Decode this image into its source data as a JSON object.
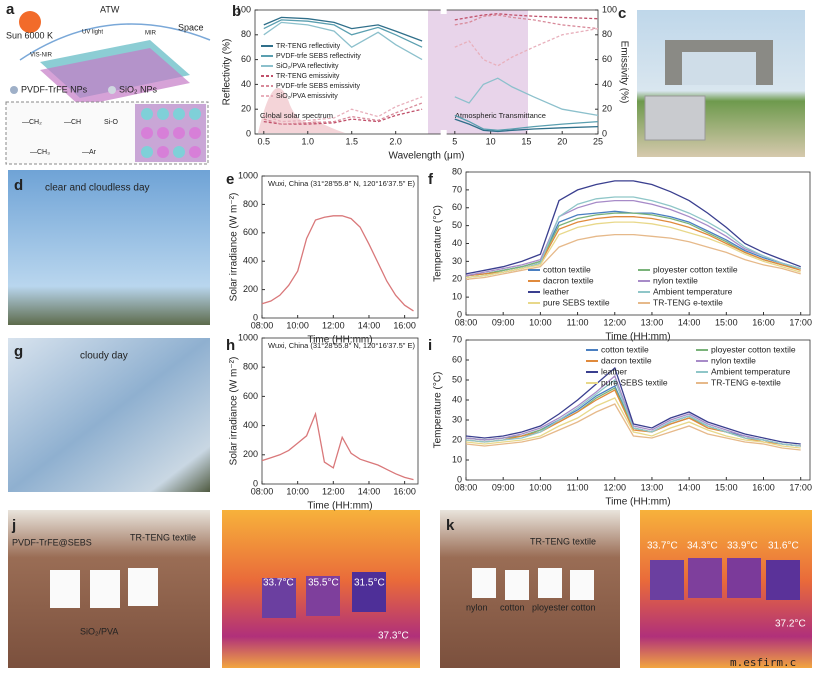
{
  "chart_data": [
    {
      "type": "line",
      "x": [
        0.5,
        0.7,
        1.0,
        1.3,
        1.5,
        1.8,
        2.0,
        2.3,
        5,
        7,
        9,
        11,
        13,
        16,
        20,
        25
      ],
      "xlim": [
        0.4,
        25
      ],
      "xbreak": [
        2.5,
        4
      ],
      "xticks": [
        0.5,
        {
          "value": 1.0,
          "label": "1.0"
        },
        1.5,
        {
          "value": 2.0,
          "label": "2.0"
        },
        5,
        10,
        15,
        20,
        25
      ],
      "xlabel": "Wavelength (μm)",
      "ylabel": "Reflectivity (%)",
      "y2label": "Emissivity (%)",
      "ylim": [
        0,
        100
      ],
      "yticks": [
        0,
        20,
        40,
        60,
        80,
        100
      ],
      "y2lim": [
        0,
        100
      ],
      "y2ticks": [
        0,
        20,
        40,
        60,
        80,
        100
      ],
      "grid": false,
      "legend": "center left",
      "annotations": [
        "Global solar spectrum",
        "Atmospheric Transmittance"
      ],
      "series": [
        {
          "name": "TR-TENG reflectivity",
          "color": "#2f6f8a",
          "values": [
            88,
            94,
            93,
            90,
            85,
            88,
            83,
            75,
            12,
            8,
            3,
            2,
            3,
            4,
            5,
            6
          ]
        },
        {
          "name": "PVDF-trfe SEBS reflectivity",
          "color": "#5a9fb0",
          "values": [
            85,
            92,
            91,
            88,
            80,
            86,
            80,
            70,
            15,
            10,
            4,
            3,
            4,
            6,
            8,
            10
          ]
        },
        {
          "name": "SiO₂/PVA reflectivity",
          "color": "#8cc0cc",
          "values": [
            80,
            90,
            88,
            83,
            70,
            82,
            72,
            60,
            30,
            25,
            40,
            45,
            38,
            30,
            20,
            15
          ]
        },
        {
          "name": "TR-TENG emissivity",
          "color": "#c0506a",
          "axis": "y2",
          "values": [
            10,
            8,
            8,
            9,
            12,
            10,
            15,
            20,
            92,
            94,
            96,
            97,
            96,
            95,
            94,
            93
          ]
        },
        {
          "name": "PVDF-trfe SEBS emissivity",
          "color": "#d88a9a",
          "axis": "y2",
          "values": [
            12,
            8,
            9,
            10,
            14,
            11,
            17,
            25,
            88,
            90,
            95,
            96,
            94,
            92,
            88,
            85
          ]
        },
        {
          "name": "SiO₂/PVA emissivity",
          "color": "#e8b0bc",
          "axis": "y2",
          "values": [
            15,
            10,
            11,
            13,
            20,
            14,
            22,
            30,
            70,
            75,
            60,
            55,
            62,
            70,
            80,
            85
          ]
        }
      ]
    },
    {
      "type": "line",
      "title": "Wuxi, China (31°28'55.8\" N, 120°16'37.5\" E)",
      "x": [
        "08:00",
        null,
        null,
        null,
        "10:00",
        null,
        null,
        null,
        "12:00",
        null,
        null,
        null,
        "14:00",
        null,
        null,
        null,
        "16:00",
        null
      ],
      "xlabel": "Time (HH:mm)",
      "ylabel": "Solar irradiance (W m⁻²)",
      "ylim": [
        0,
        1000
      ],
      "yticks": [
        0,
        200,
        400,
        600,
        800,
        1000
      ],
      "grid": false,
      "series": [
        {
          "name": "Solar irradiance",
          "color": "#d9787a",
          "values": [
            100,
            120,
            160,
            230,
            330,
            560,
            690,
            710,
            720,
            720,
            700,
            640,
            520,
            390,
            260,
            160,
            90,
            50
          ]
        }
      ]
    },
    {
      "type": "line",
      "x": [
        "08:00",
        null,
        "09:00",
        null,
        "10:00",
        null,
        "11:00",
        null,
        "12:00",
        null,
        "13:00",
        null,
        "14:00",
        null,
        "15:00",
        null,
        "16:00",
        null,
        "17:00"
      ],
      "xlabel": "Time (HH:mm)",
      "ylabel": "Temperature (°C)",
      "ylim": [
        0,
        80
      ],
      "yticks": [
        0,
        10,
        20,
        30,
        40,
        50,
        60,
        70,
        80
      ],
      "grid": false,
      "legend": "lower center",
      "series": [
        {
          "name": "cotton textile",
          "color": "#4a7fc1",
          "values": [
            22,
            23,
            25,
            27,
            30,
            52,
            56,
            57,
            58,
            57,
            57,
            55,
            52,
            47,
            42,
            36,
            32,
            29,
            26
          ]
        },
        {
          "name": "ployester cotton textile",
          "color": "#7ab37a",
          "values": [
            22,
            23,
            25,
            27,
            30,
            50,
            54,
            56,
            57,
            57,
            56,
            54,
            51,
            46,
            41,
            35,
            31,
            28,
            26
          ]
        },
        {
          "name": "dacron textile",
          "color": "#e08a3c",
          "values": [
            22,
            23,
            24,
            26,
            29,
            48,
            52,
            54,
            55,
            55,
            54,
            52,
            49,
            45,
            40,
            35,
            31,
            28,
            25
          ]
        },
        {
          "name": "nylon textile",
          "color": "#a78bc8",
          "values": [
            22,
            24,
            26,
            28,
            31,
            55,
            60,
            63,
            64,
            64,
            62,
            59,
            55,
            50,
            44,
            37,
            33,
            29,
            26
          ]
        },
        {
          "name": "leather",
          "color": "#3a3f8f",
          "values": [
            23,
            25,
            27,
            30,
            34,
            64,
            70,
            73,
            75,
            75,
            73,
            69,
            64,
            57,
            49,
            40,
            35,
            31,
            27
          ]
        },
        {
          "name": "Ambient temperature",
          "color": "#8fc6c8",
          "values": [
            21,
            22,
            24,
            26,
            29,
            55,
            62,
            65,
            66,
            66,
            64,
            61,
            57,
            52,
            46,
            38,
            33,
            29,
            26
          ]
        },
        {
          "name": "pure SEBS textile",
          "color": "#e8d88a",
          "values": [
            21,
            22,
            24,
            26,
            28,
            45,
            49,
            51,
            52,
            52,
            51,
            49,
            46,
            43,
            39,
            34,
            30,
            27,
            24
          ]
        },
        {
          "name": "TR-TENG e-textile",
          "color": "#e6b98a",
          "values": [
            20,
            21,
            23,
            25,
            27,
            38,
            42,
            44,
            45,
            45,
            44,
            43,
            41,
            38,
            35,
            31,
            28,
            26,
            23
          ]
        }
      ]
    },
    {
      "type": "line",
      "title": "Wuxi, China (31°28'55.8\" N, 120°16'37.5\" E)",
      "x": [
        "08:00",
        null,
        null,
        null,
        "10:00",
        null,
        null,
        null,
        "12:00",
        null,
        null,
        null,
        "14:00",
        null,
        null,
        null,
        "16:00",
        null
      ],
      "xlabel": "Time (HH:mm)",
      "ylabel": "Solar irradiance (W m⁻²)",
      "ylim": [
        0,
        1000
      ],
      "yticks": [
        0,
        200,
        400,
        600,
        800,
        1000
      ],
      "grid": false,
      "series": [
        {
          "name": "Solar irradiance",
          "color": "#d9787a",
          "values": [
            160,
            180,
            200,
            230,
            280,
            330,
            480,
            150,
            110,
            320,
            210,
            170,
            150,
            130,
            100,
            70,
            45,
            30
          ]
        }
      ]
    },
    {
      "type": "line",
      "x": [
        "08:00",
        null,
        "09:00",
        null,
        "10:00",
        null,
        "11:00",
        null,
        "12:00",
        null,
        "13:00",
        null,
        "14:00",
        null,
        "15:00",
        null,
        "16:00",
        null,
        "17:00"
      ],
      "xlabel": "Time (HH:mm)",
      "ylabel": "Temperature (°C)",
      "ylim": [
        0,
        70
      ],
      "yticks": [
        0,
        10,
        20,
        30,
        40,
        50,
        60,
        70
      ],
      "grid": false,
      "legend": "upper right",
      "series": [
        {
          "name": "cotton textile",
          "color": "#4a7fc1",
          "values": [
            21,
            20,
            21,
            22,
            25,
            30,
            35,
            42,
            47,
            26,
            24,
            29,
            32,
            27,
            24,
            22,
            20,
            18,
            17
          ]
        },
        {
          "name": "ployester cotton textile",
          "color": "#7ab37a",
          "values": [
            21,
            20,
            21,
            22,
            25,
            29,
            34,
            41,
            46,
            26,
            24,
            28,
            31,
            27,
            24,
            21,
            20,
            18,
            17
          ]
        },
        {
          "name": "dacron textile",
          "color": "#e08a3c",
          "values": [
            20,
            19,
            20,
            22,
            24,
            29,
            34,
            40,
            45,
            25,
            24,
            28,
            31,
            26,
            24,
            21,
            19,
            18,
            17
          ]
        },
        {
          "name": "nylon textile",
          "color": "#a78bc8",
          "values": [
            21,
            20,
            21,
            23,
            26,
            31,
            37,
            44,
            52,
            27,
            25,
            30,
            33,
            28,
            25,
            22,
            20,
            18,
            17
          ]
        },
        {
          "name": "leather",
          "color": "#3a3f8f",
          "values": [
            22,
            21,
            22,
            24,
            27,
            33,
            40,
            48,
            56,
            28,
            26,
            31,
            34,
            29,
            26,
            23,
            21,
            19,
            18
          ]
        },
        {
          "name": "Ambient temperature",
          "color": "#8fc6c8",
          "values": [
            20,
            19,
            20,
            21,
            24,
            30,
            36,
            43,
            50,
            26,
            24,
            29,
            32,
            27,
            24,
            21,
            20,
            18,
            17
          ]
        },
        {
          "name": "pure SEBS textile",
          "color": "#e8d88a",
          "values": [
            19,
            18,
            19,
            20,
            22,
            27,
            31,
            37,
            41,
            24,
            22,
            26,
            29,
            25,
            22,
            20,
            19,
            17,
            16
          ]
        },
        {
          "name": "TR-TENG e-textile",
          "color": "#e6b98a",
          "values": [
            18,
            17,
            18,
            19,
            21,
            25,
            29,
            34,
            38,
            22,
            21,
            24,
            27,
            23,
            21,
            19,
            18,
            16,
            15
          ]
        }
      ]
    }
  ],
  "panel_labels": [
    "a",
    "b",
    "c",
    "d",
    "e",
    "f",
    "g",
    "h",
    "i",
    "j",
    "k"
  ],
  "schematic": {
    "sun": "Sun 6000 K",
    "atw": "ATW",
    "space": "Space",
    "vis_nir": "VIS-NIR",
    "uv": "UV light",
    "mir": "MIR",
    "pvdf_nps": "PVDF-TrFE NPs",
    "sio2_nps": "SiO₂ NPs",
    "groups": [
      "—CH₂",
      "—CH",
      "Si-O",
      "—CH₃",
      "—Ar"
    ]
  },
  "photo_d": "clear and cloudless day",
  "photo_g": "cloudy day",
  "photo_j": {
    "labels": [
      "PVDF-TrFE@SEBS",
      "TR-TENG textile",
      "SiO₂/PVA"
    ],
    "temps": [
      "33.7°C",
      "35.5°C",
      "31.5°C",
      "37.3°C"
    ]
  },
  "photo_k": {
    "labels": [
      "TR-TENG textile",
      "nylon",
      "cotton",
      "ployester cotton"
    ],
    "temps": [
      "33.7°C",
      "34.3°C",
      "33.9°C",
      "31.6°C",
      "37.2°C"
    ]
  },
  "watermark": "m.esfirm.c"
}
